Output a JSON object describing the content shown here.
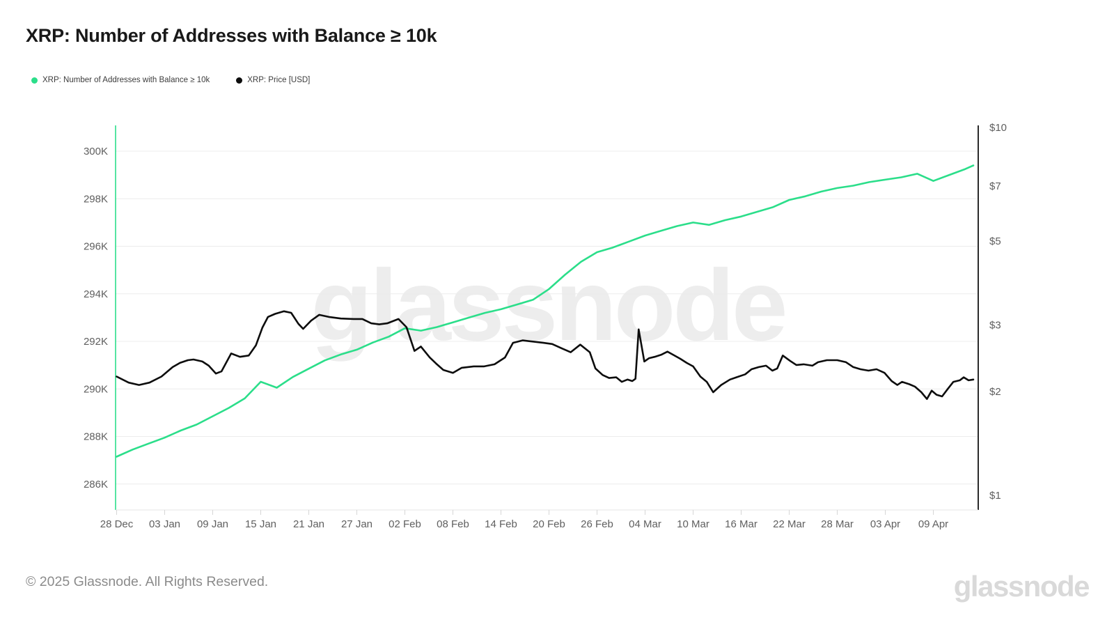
{
  "page": {
    "title": "XRP: Number of Addresses with Balance ≥ 10k"
  },
  "legend": {
    "items": [
      {
        "label": "XRP: Number of Addresses with Balance ≥ 10k",
        "color": "#2bde8a"
      },
      {
        "label": "XRP: Price [USD]",
        "color": "#0d0d0d"
      }
    ]
  },
  "watermark": {
    "text": "glassnode",
    "color": "#ededed"
  },
  "footer": {
    "copyright": "© 2025 Glassnode. All Rights Reserved.",
    "brand": "glassnode"
  },
  "chart_data": {
    "type": "line",
    "title": "XRP: Number of Addresses with Balance ≥ 10k",
    "x_unit": "days since 28 Dec",
    "x_tick_labels": [
      "28 Dec",
      "03 Jan",
      "09 Jan",
      "15 Jan",
      "21 Jan",
      "27 Jan",
      "02 Feb",
      "08 Feb",
      "14 Feb",
      "20 Feb",
      "26 Feb",
      "04 Mar",
      "10 Mar",
      "16 Mar",
      "22 Mar",
      "28 Mar",
      "03 Apr",
      "09 Apr"
    ],
    "x_tick_days": [
      0,
      6,
      12,
      18,
      24,
      30,
      36,
      42,
      48,
      54,
      60,
      66,
      72,
      78,
      84,
      90,
      96,
      102
    ],
    "left_axis": {
      "title": "Number of Addresses with Balance ≥ 10k",
      "ticks": [
        300,
        298,
        296,
        294,
        292,
        290,
        288,
        286
      ],
      "unit": "K",
      "range": [
        285.5,
        301.4
      ],
      "grid": true,
      "axis_color": "#2bde8a",
      "text_color": "#5f5f5f"
    },
    "right_axis": {
      "title": "XRP Price [USD]",
      "scale": "log",
      "ticks": [
        "$10",
        "$7",
        "$5",
        "$3",
        "$2",
        "$1"
      ],
      "tick_values": [
        10,
        7,
        5,
        3,
        2,
        1
      ],
      "axis_color": "#2a2a2a",
      "text_color": "#5f5f5f"
    },
    "grid_color": "#ececec",
    "series": [
      {
        "name": "XRP: Number of Addresses with Balance ≥ 10k",
        "axis": "left",
        "unit": "K (thousand addresses)",
        "color": "#2bde8a",
        "points": [
          [
            0,
            287.15
          ],
          [
            2,
            287.45
          ],
          [
            4,
            287.7
          ],
          [
            6,
            287.95
          ],
          [
            8,
            288.25
          ],
          [
            10,
            288.5
          ],
          [
            12,
            288.85
          ],
          [
            14,
            289.2
          ],
          [
            16,
            289.6
          ],
          [
            18,
            290.3
          ],
          [
            20,
            290.05
          ],
          [
            22,
            290.5
          ],
          [
            24,
            290.85
          ],
          [
            26,
            291.2
          ],
          [
            28,
            291.45
          ],
          [
            30,
            291.65
          ],
          [
            32,
            291.95
          ],
          [
            34,
            292.2
          ],
          [
            36,
            292.55
          ],
          [
            38,
            292.45
          ],
          [
            40,
            292.6
          ],
          [
            42,
            292.8
          ],
          [
            44,
            293
          ],
          [
            46,
            293.2
          ],
          [
            48,
            293.35
          ],
          [
            50,
            293.55
          ],
          [
            52,
            293.75
          ],
          [
            54,
            294.2
          ],
          [
            56,
            294.8
          ],
          [
            58,
            295.35
          ],
          [
            60,
            295.75
          ],
          [
            62,
            295.95
          ],
          [
            64,
            296.2
          ],
          [
            66,
            296.45
          ],
          [
            68,
            296.65
          ],
          [
            70,
            296.85
          ],
          [
            72,
            297
          ],
          [
            74,
            296.9
          ],
          [
            76,
            297.1
          ],
          [
            78,
            297.25
          ],
          [
            80,
            297.45
          ],
          [
            82,
            297.65
          ],
          [
            84,
            297.95
          ],
          [
            86,
            298.1
          ],
          [
            88,
            298.3
          ],
          [
            90,
            298.45
          ],
          [
            92,
            298.55
          ],
          [
            94,
            298.7
          ],
          [
            96,
            298.8
          ],
          [
            98,
            298.9
          ],
          [
            100,
            299.05
          ],
          [
            102,
            298.75
          ],
          [
            104,
            299
          ],
          [
            106,
            299.25
          ],
          [
            107,
            299.4
          ]
        ]
      },
      {
        "name": "XRP: Price [USD]",
        "axis": "right",
        "unit": "USD",
        "color": "#0d0d0d",
        "points": [
          [
            0,
            2.19
          ],
          [
            1.5,
            2.11
          ],
          [
            2.8,
            2.08
          ],
          [
            4.1,
            2.11
          ],
          [
            5.6,
            2.19
          ],
          [
            7,
            2.32
          ],
          [
            7.9,
            2.38
          ],
          [
            8.9,
            2.42
          ],
          [
            9.6,
            2.43
          ],
          [
            10.7,
            2.4
          ],
          [
            11.5,
            2.34
          ],
          [
            12.4,
            2.23
          ],
          [
            13.1,
            2.26
          ],
          [
            14.3,
            2.52
          ],
          [
            15.4,
            2.47
          ],
          [
            16.5,
            2.49
          ],
          [
            17.4,
            2.65
          ],
          [
            18.2,
            2.95
          ],
          [
            18.9,
            3.15
          ],
          [
            19.8,
            3.21
          ],
          [
            20.9,
            3.26
          ],
          [
            21.8,
            3.23
          ],
          [
            22.7,
            3.02
          ],
          [
            23.3,
            2.93
          ],
          [
            24.3,
            3.08
          ],
          [
            25.3,
            3.19
          ],
          [
            26.5,
            3.15
          ],
          [
            28,
            3.12
          ],
          [
            29.6,
            3.11
          ],
          [
            30.7,
            3.11
          ],
          [
            31.8,
            3.03
          ],
          [
            32.8,
            3.01
          ],
          [
            33.8,
            3.03
          ],
          [
            35.2,
            3.11
          ],
          [
            36.2,
            2.96
          ],
          [
            37.2,
            2.56
          ],
          [
            38,
            2.63
          ],
          [
            39.1,
            2.46
          ],
          [
            40,
            2.36
          ],
          [
            40.8,
            2.28
          ],
          [
            42,
            2.24
          ],
          [
            43.1,
            2.31
          ],
          [
            44.6,
            2.33
          ],
          [
            45.9,
            2.33
          ],
          [
            47.2,
            2.36
          ],
          [
            48.5,
            2.46
          ],
          [
            49.5,
            2.69
          ],
          [
            50.7,
            2.73
          ],
          [
            52,
            2.71
          ],
          [
            53.3,
            2.69
          ],
          [
            54.4,
            2.67
          ],
          [
            55.6,
            2.6
          ],
          [
            56.7,
            2.54
          ],
          [
            57.9,
            2.66
          ],
          [
            59.1,
            2.54
          ],
          [
            59.8,
            2.3
          ],
          [
            60.7,
            2.21
          ],
          [
            61.5,
            2.17
          ],
          [
            62.4,
            2.18
          ],
          [
            63.1,
            2.12
          ],
          [
            63.8,
            2.15
          ],
          [
            64.4,
            2.13
          ],
          [
            64.8,
            2.16
          ],
          [
            65.2,
            2.92
          ],
          [
            65.9,
            2.4
          ],
          [
            66.5,
            2.45
          ],
          [
            67.2,
            2.47
          ],
          [
            68,
            2.5
          ],
          [
            68.8,
            2.55
          ],
          [
            69.5,
            2.5
          ],
          [
            70.4,
            2.44
          ],
          [
            71.2,
            2.38
          ],
          [
            72,
            2.33
          ],
          [
            72.9,
            2.19
          ],
          [
            73.7,
            2.12
          ],
          [
            74.5,
            1.99
          ],
          [
            75.5,
            2.08
          ],
          [
            76.6,
            2.15
          ],
          [
            77.4,
            2.18
          ],
          [
            78.5,
            2.22
          ],
          [
            79.3,
            2.29
          ],
          [
            80.2,
            2.32
          ],
          [
            81.1,
            2.34
          ],
          [
            81.9,
            2.27
          ],
          [
            82.5,
            2.3
          ],
          [
            83.2,
            2.49
          ],
          [
            84.1,
            2.41
          ],
          [
            84.9,
            2.35
          ],
          [
            85.8,
            2.36
          ],
          [
            86.9,
            2.34
          ],
          [
            87.6,
            2.39
          ],
          [
            88.7,
            2.42
          ],
          [
            90,
            2.42
          ],
          [
            91.1,
            2.39
          ],
          [
            92,
            2.32
          ],
          [
            92.9,
            2.29
          ],
          [
            93.9,
            2.27
          ],
          [
            94.9,
            2.29
          ],
          [
            95.9,
            2.24
          ],
          [
            96.8,
            2.13
          ],
          [
            97.5,
            2.08
          ],
          [
            98.1,
            2.12
          ],
          [
            99,
            2.09
          ],
          [
            99.7,
            2.06
          ],
          [
            100.5,
            1.99
          ],
          [
            101.2,
            1.91
          ],
          [
            101.8,
            2.01
          ],
          [
            102.4,
            1.96
          ],
          [
            103.1,
            1.94
          ],
          [
            103.8,
            2.03
          ],
          [
            104.5,
            2.12
          ],
          [
            105.3,
            2.14
          ],
          [
            105.8,
            2.18
          ],
          [
            106.4,
            2.14
          ],
          [
            107,
            2.15
          ]
        ]
      }
    ]
  }
}
